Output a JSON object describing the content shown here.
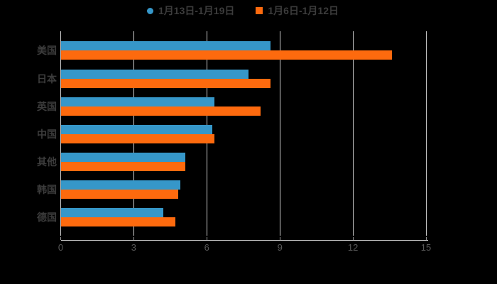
{
  "chart_data": {
    "type": "bar",
    "orientation": "horizontal",
    "title": "",
    "xlabel": "",
    "ylabel": "",
    "categories": [
      "美国",
      "日本",
      "英国",
      "中国",
      "其他",
      "韩国",
      "德国"
    ],
    "series": [
      {
        "name": "1月13日-1月19日",
        "marker": "circle",
        "color": "#3697c9",
        "values": [
          8.6,
          7.7,
          6.3,
          6.2,
          5.1,
          4.9,
          4.2
        ]
      },
      {
        "name": "1月6日-1月12日",
        "marker": "square",
        "color": "#fd6a0e",
        "values": [
          13.6,
          8.6,
          8.2,
          6.3,
          5.1,
          4.8,
          4.7
        ]
      }
    ],
    "xlim": [
      0,
      15
    ],
    "xticks": [
      0,
      3,
      6,
      9,
      12,
      15
    ],
    "grid": true,
    "legend_position": "top",
    "background_color": "#000000"
  }
}
